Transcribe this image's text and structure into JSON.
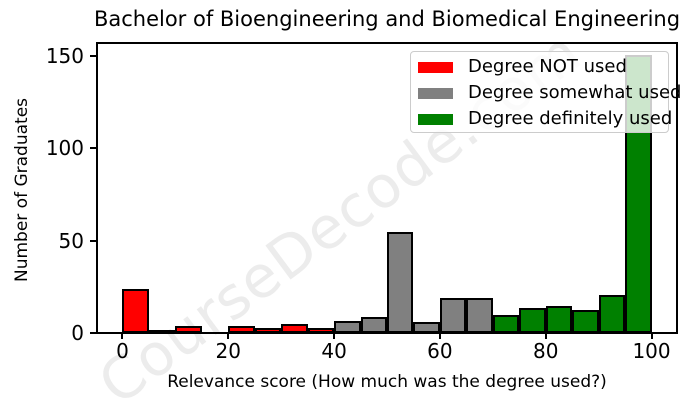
{
  "watermark": "CourseDecode.com",
  "chart_data": {
    "type": "histogram",
    "title": "Bachelor of Bioengineering and Biomedical Engineering",
    "xlabel": "Relevance score (How much was the degree used?)",
    "ylabel": "Number of Graduates",
    "xlim": [
      -5,
      105
    ],
    "ylim": [
      0,
      157.5
    ],
    "xticks": [
      0,
      20,
      40,
      60,
      80,
      100
    ],
    "yticks": [
      0,
      50,
      100,
      150
    ],
    "bin_width": 5,
    "grid": false,
    "bar_edge_color": "#000000",
    "groups": {
      "not_used": {
        "label": "Degree NOT used",
        "color": "#ff0000"
      },
      "somewhat_used": {
        "label": "Degree somewhat used",
        "color": "#808080"
      },
      "definitely_used": {
        "label": "Degree definitely used",
        "color": "#008000"
      }
    },
    "bins": [
      {
        "start": 0,
        "end": 5,
        "count": 23,
        "group": "not_used"
      },
      {
        "start": 5,
        "end": 10,
        "count": 1,
        "group": "not_used"
      },
      {
        "start": 10,
        "end": 15,
        "count": 3,
        "group": "not_used"
      },
      {
        "start": 15,
        "end": 20,
        "count": 0,
        "group": "not_used"
      },
      {
        "start": 20,
        "end": 25,
        "count": 3,
        "group": "not_used"
      },
      {
        "start": 25,
        "end": 30,
        "count": 2,
        "group": "not_used"
      },
      {
        "start": 30,
        "end": 35,
        "count": 4,
        "group": "not_used"
      },
      {
        "start": 35,
        "end": 40,
        "count": 2,
        "group": "not_used"
      },
      {
        "start": 40,
        "end": 45,
        "count": 6,
        "group": "somewhat_used"
      },
      {
        "start": 45,
        "end": 50,
        "count": 8,
        "group": "somewhat_used"
      },
      {
        "start": 50,
        "end": 55,
        "count": 54,
        "group": "somewhat_used"
      },
      {
        "start": 55,
        "end": 60,
        "count": 5,
        "group": "somewhat_used"
      },
      {
        "start": 60,
        "end": 65,
        "count": 18,
        "group": "somewhat_used"
      },
      {
        "start": 65,
        "end": 70,
        "count": 18,
        "group": "somewhat_used"
      },
      {
        "start": 70,
        "end": 75,
        "count": 9,
        "group": "definitely_used"
      },
      {
        "start": 75,
        "end": 80,
        "count": 13,
        "group": "definitely_used"
      },
      {
        "start": 80,
        "end": 85,
        "count": 14,
        "group": "definitely_used"
      },
      {
        "start": 85,
        "end": 90,
        "count": 12,
        "group": "definitely_used"
      },
      {
        "start": 90,
        "end": 95,
        "count": 20,
        "group": "definitely_used"
      },
      {
        "start": 95,
        "end": 100,
        "count": 150,
        "group": "definitely_used"
      }
    ],
    "legend": {
      "position": "upper right",
      "items": [
        {
          "label": "Degree NOT used",
          "color": "#ff0000"
        },
        {
          "label": "Degree somewhat used",
          "color": "#808080"
        },
        {
          "label": "Degree definitely used",
          "color": "#008000"
        }
      ]
    }
  }
}
